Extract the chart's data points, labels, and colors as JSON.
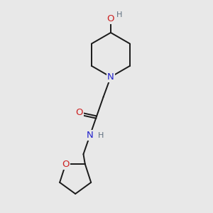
{
  "bg_color": "#e8e8e8",
  "bond_color": "#1a1a1a",
  "bond_width": 1.4,
  "atom_colors": {
    "N": "#2222cc",
    "O": "#cc2222",
    "H": "#607080"
  },
  "font_size_atom": 9.5,
  "font_size_H": 8.0,
  "fig_size": [
    3.0,
    3.0
  ],
  "dpi": 100,
  "xlim": [
    0,
    10
  ],
  "ylim": [
    0,
    10
  ]
}
